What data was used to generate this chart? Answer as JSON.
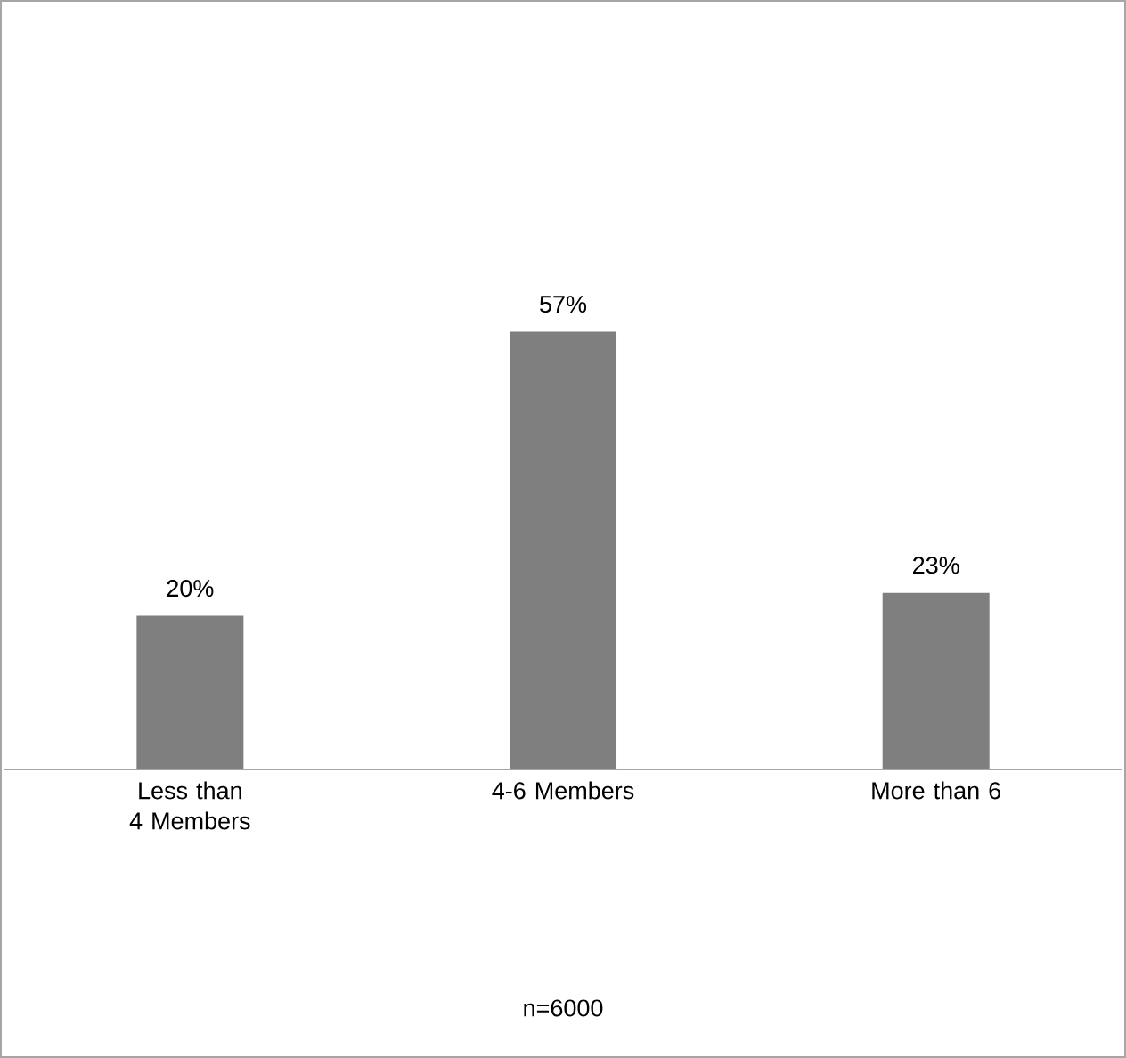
{
  "chart_data": {
    "type": "bar",
    "categories": [
      "Less than 4 Members",
      "4-6 Members",
      "More than 6"
    ],
    "values": [
      20,
      57,
      23
    ],
    "value_labels": [
      "20%",
      "57%",
      "23%"
    ],
    "color": "#7f7f7f",
    "tick_labels": "x",
    "annotations": [
      "n=6000"
    ]
  }
}
